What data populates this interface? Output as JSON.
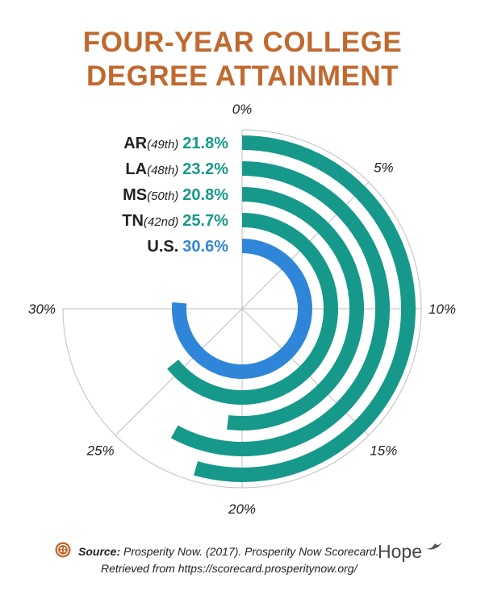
{
  "title_line1": "FOUR-YEAR COLLEGE",
  "title_line2": "DEGREE ATTAINMENT",
  "colors": {
    "title": "#c0692f",
    "state": "#16998a",
    "us": "#2f86d9",
    "grid": "#bfbfbf"
  },
  "chart_data": {
    "type": "radial-bar",
    "title": "FOUR-YEAR COLLEGE DEGREE ATTAINMENT",
    "axis_max": 40,
    "ticks": [
      {
        "value": 0,
        "label": "0%"
      },
      {
        "value": 5,
        "label": "5%"
      },
      {
        "value": 10,
        "label": "10%"
      },
      {
        "value": 15,
        "label": "15%"
      },
      {
        "value": 20,
        "label": "20%"
      },
      {
        "value": 25,
        "label": "25%"
      },
      {
        "value": 30,
        "label": "30%"
      }
    ],
    "series": [
      {
        "name": "AR",
        "rank": "(49th)",
        "value": 21.8,
        "label": "21.8%",
        "color": "#16998a"
      },
      {
        "name": "LA",
        "rank": "(48th)",
        "value": 23.2,
        "label": "23.2%",
        "color": "#16998a"
      },
      {
        "name": "MS",
        "rank": "(50th)",
        "value": 20.8,
        "label": "20.8%",
        "color": "#16998a"
      },
      {
        "name": "TN",
        "rank": "(42nd)",
        "value": 25.7,
        "label": "25.7%",
        "color": "#16998a"
      },
      {
        "name": "U.S.",
        "rank": "",
        "value": 30.6,
        "label": "30.6%",
        "color": "#2f86d9"
      }
    ]
  },
  "footer": {
    "source_label": "Source:",
    "source_text": " Prosperity Now. (2017). Prosperity Now Scorecard.",
    "retrieved": "Retrieved from https://scorecard.prosperitynow.org/",
    "brand": "Hope"
  }
}
